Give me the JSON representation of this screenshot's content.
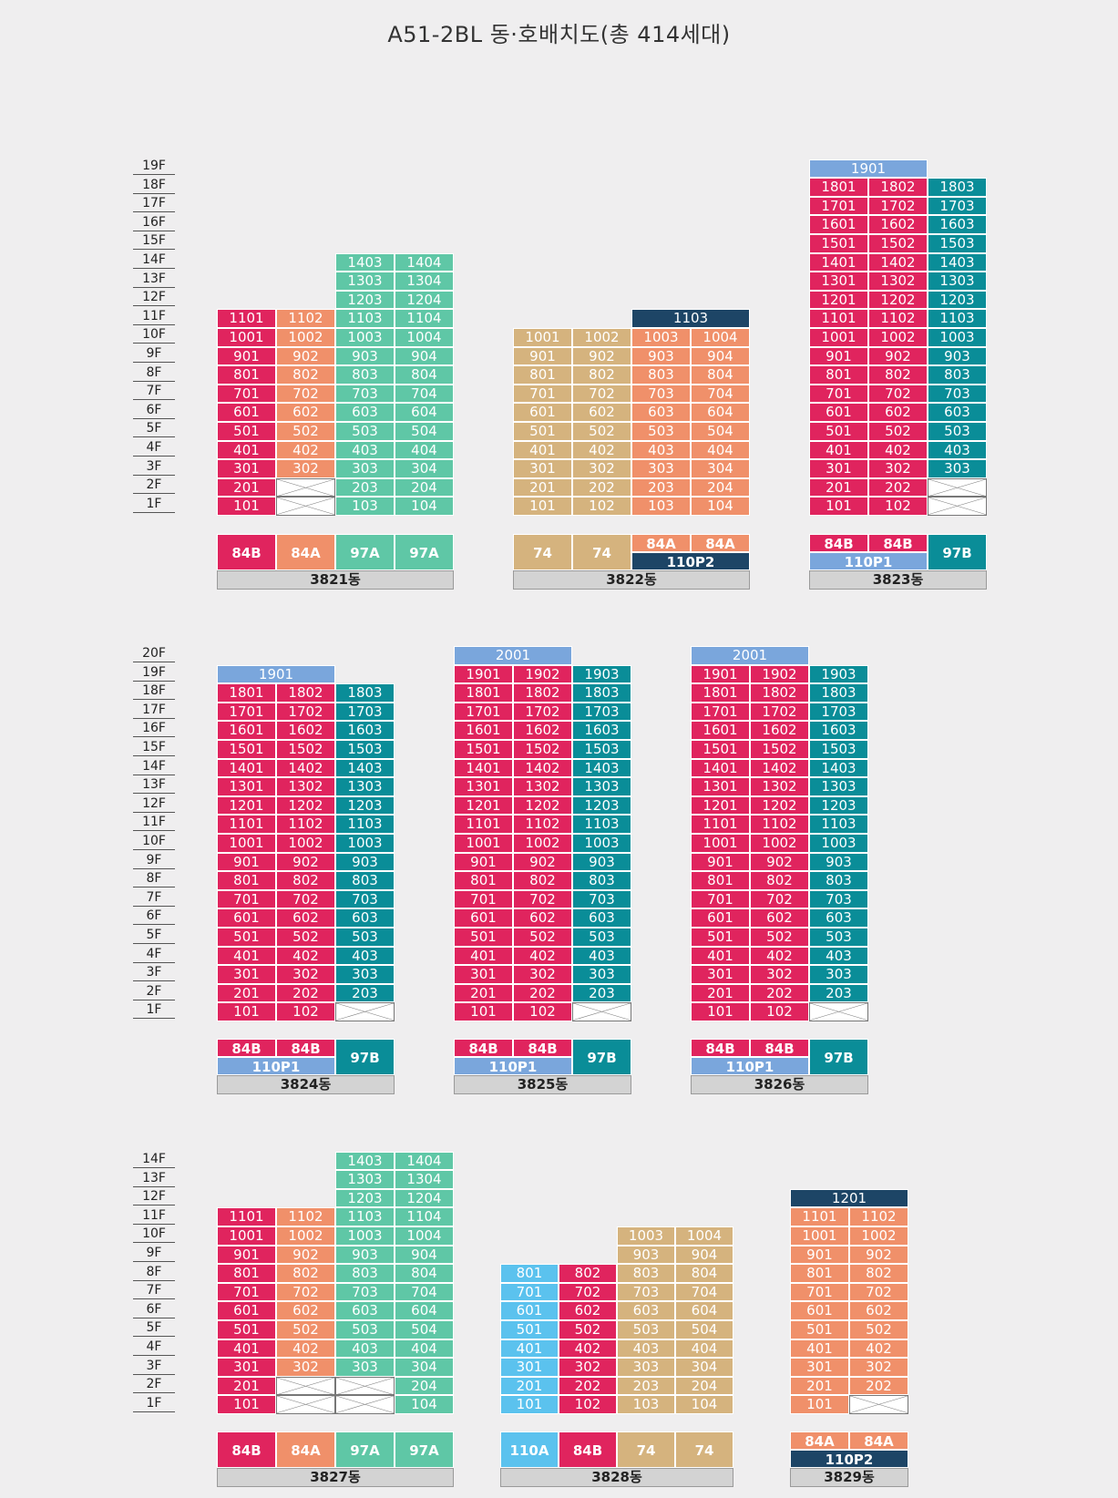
{
  "title": "A51-2BL 동·호배치도(총 414세대)",
  "colors": {
    "84B": "#e0245e",
    "84A": "#f0906a",
    "97A": "#5fc7a6",
    "97B": "#0a8d98",
    "74": "#d5b37e",
    "110A": "#5bc2ee",
    "110P": "#2f5b7d",
    "110P1": "#7aa6dc",
    "110P2": "#1d4566",
    "void": "#ffffff"
  },
  "floor_scales": [
    {
      "floors": [
        "19F",
        "18F",
        "17F",
        "16F",
        "15F",
        "14F",
        "13F",
        "12F",
        "11F",
        "10F",
        "9F",
        "8F",
        "7F",
        "6F",
        "5F",
        "4F",
        "3F",
        "2F",
        "1F"
      ]
    },
    {
      "floors": [
        "20F",
        "19F",
        "18F",
        "17F",
        "16F",
        "15F",
        "14F",
        "13F",
        "12F",
        "11F",
        "10F",
        "9F",
        "8F",
        "7F",
        "6F",
        "5F",
        "4F",
        "3F",
        "2F",
        "1F"
      ]
    },
    {
      "floors": [
        "14F",
        "13F",
        "12F",
        "11F",
        "10F",
        "9F",
        "8F",
        "7F",
        "6F",
        "5F",
        "4F",
        "3F",
        "2F",
        "1F"
      ]
    }
  ],
  "buildings": [
    {
      "name": "3821동",
      "columns": [
        {
          "type": "84B",
          "floors": [
            "101",
            "201",
            "301",
            "401",
            "501",
            "601",
            "701",
            "801",
            "901",
            "1001",
            "1101"
          ]
        },
        {
          "type": "84A",
          "floors": [
            null,
            null,
            "302",
            "402",
            "502",
            "602",
            "702",
            "802",
            "902",
            "1002",
            "1102"
          ]
        },
        {
          "type": "97A",
          "floors": [
            "103",
            "203",
            "303",
            "403",
            "503",
            "603",
            "703",
            "803",
            "903",
            "1003",
            "1103",
            "1203",
            "1303",
            "1403"
          ]
        },
        {
          "type": "97A",
          "floors": [
            "104",
            "204",
            "304",
            "404",
            "504",
            "604",
            "704",
            "804",
            "904",
            "1004",
            "1104",
            "1204",
            "1304",
            "1404"
          ]
        }
      ],
      "penthouse": null,
      "legend": [
        {
          "label": "84B",
          "type": "84B"
        },
        {
          "label": "84A",
          "type": "84A"
        },
        {
          "label": "97A",
          "type": "97A"
        },
        {
          "label": "97A",
          "type": "97A"
        }
      ]
    },
    {
      "name": "3822동",
      "columns": [
        {
          "type": "74",
          "floors": [
            "101",
            "201",
            "301",
            "401",
            "501",
            "601",
            "701",
            "801",
            "901",
            "1001"
          ]
        },
        {
          "type": "74",
          "floors": [
            "102",
            "202",
            "302",
            "402",
            "502",
            "602",
            "702",
            "802",
            "902",
            "1002"
          ]
        },
        {
          "type": "84A",
          "floors": [
            "103",
            "203",
            "303",
            "403",
            "503",
            "603",
            "703",
            "803",
            "903",
            "1003"
          ]
        },
        {
          "type": "84A",
          "floors": [
            "104",
            "204",
            "304",
            "404",
            "504",
            "604",
            "704",
            "804",
            "904",
            "1004"
          ]
        }
      ],
      "penthouse": {
        "label": "1103",
        "type": "110P2"
      },
      "legend": [
        {
          "label": "74",
          "type": "74"
        },
        {
          "label": "74",
          "type": "74"
        },
        {
          "label": "84A",
          "type": "84A"
        },
        {
          "label": "84A",
          "type": "84A"
        }
      ],
      "legend_sub": {
        "label": "110P2",
        "type": "110P2"
      }
    },
    {
      "name": "3823동",
      "columns": [
        {
          "type": "84B",
          "floors": [
            "101",
            "201",
            "301",
            "401",
            "501",
            "601",
            "701",
            "801",
            "901",
            "1001",
            "1101",
            "1201",
            "1301",
            "1401",
            "1501",
            "1601",
            "1701",
            "1801"
          ]
        },
        {
          "type": "84B",
          "floors": [
            "102",
            "202",
            "302",
            "402",
            "502",
            "602",
            "702",
            "802",
            "902",
            "1002",
            "1102",
            "1202",
            "1302",
            "1402",
            "1502",
            "1602",
            "1702",
            "1802"
          ]
        },
        {
          "type": "97B",
          "floors": [
            null,
            null,
            "303",
            "403",
            "503",
            "603",
            "703",
            "803",
            "903",
            "1003",
            "1103",
            "1203",
            "1303",
            "1403",
            "1503",
            "1603",
            "1703",
            "1803"
          ]
        }
      ],
      "penthouse": {
        "label": "1901",
        "type": "110P1"
      },
      "legend": [
        {
          "label": "84B",
          "type": "84B"
        },
        {
          "label": "84B",
          "type": "84B"
        },
        {
          "label": "97B",
          "type": "97B"
        }
      ],
      "legend_sub": {
        "label": "110P1",
        "type": "110P1"
      }
    },
    {
      "name": "3824동",
      "columns": [
        {
          "type": "84B",
          "floors": [
            "101",
            "201",
            "301",
            "401",
            "501",
            "601",
            "701",
            "801",
            "901",
            "1001",
            "1101",
            "1201",
            "1301",
            "1401",
            "1501",
            "1601",
            "1701",
            "1801"
          ]
        },
        {
          "type": "84B",
          "floors": [
            "102",
            "202",
            "302",
            "402",
            "502",
            "602",
            "702",
            "802",
            "902",
            "1002",
            "1102",
            "1202",
            "1302",
            "1402",
            "1502",
            "1602",
            "1702",
            "1802"
          ]
        },
        {
          "type": "97B",
          "floors": [
            null,
            "203",
            "303",
            "403",
            "503",
            "603",
            "703",
            "803",
            "903",
            "1003",
            "1103",
            "1203",
            "1303",
            "1403",
            "1503",
            "1603",
            "1703",
            "1803"
          ]
        }
      ],
      "penthouse": {
        "label": "1901",
        "type": "110P1"
      },
      "legend": [
        {
          "label": "84B",
          "type": "84B"
        },
        {
          "label": "84B",
          "type": "84B"
        },
        {
          "label": "97B",
          "type": "97B"
        }
      ],
      "legend_sub": {
        "label": "110P1",
        "type": "110P1"
      }
    },
    {
      "name": "3825동",
      "columns": [
        {
          "type": "84B",
          "floors": [
            "101",
            "201",
            "301",
            "401",
            "501",
            "601",
            "701",
            "801",
            "901",
            "1001",
            "1101",
            "1201",
            "1301",
            "1401",
            "1501",
            "1601",
            "1701",
            "1801",
            "1901"
          ]
        },
        {
          "type": "84B",
          "floors": [
            "102",
            "202",
            "302",
            "402",
            "502",
            "602",
            "702",
            "802",
            "902",
            "1002",
            "1102",
            "1202",
            "1302",
            "1402",
            "1502",
            "1602",
            "1702",
            "1802",
            "1902"
          ]
        },
        {
          "type": "97B",
          "floors": [
            null,
            "203",
            "303",
            "403",
            "503",
            "603",
            "703",
            "803",
            "903",
            "1003",
            "1103",
            "1203",
            "1303",
            "1403",
            "1503",
            "1603",
            "1703",
            "1803",
            "1903"
          ]
        }
      ],
      "penthouse": {
        "label": "2001",
        "type": "110P1"
      },
      "legend": [
        {
          "label": "84B",
          "type": "84B"
        },
        {
          "label": "84B",
          "type": "84B"
        },
        {
          "label": "97B",
          "type": "97B"
        }
      ],
      "legend_sub": {
        "label": "110P1",
        "type": "110P1"
      }
    },
    {
      "name": "3826동",
      "columns": [
        {
          "type": "84B",
          "floors": [
            "101",
            "201",
            "301",
            "401",
            "501",
            "601",
            "701",
            "801",
            "901",
            "1001",
            "1101",
            "1201",
            "1301",
            "1401",
            "1501",
            "1601",
            "1701",
            "1801",
            "1901"
          ]
        },
        {
          "type": "84B",
          "floors": [
            "102",
            "202",
            "302",
            "402",
            "502",
            "602",
            "702",
            "802",
            "902",
            "1002",
            "1102",
            "1202",
            "1302",
            "1402",
            "1502",
            "1602",
            "1702",
            "1802",
            "1902"
          ]
        },
        {
          "type": "97B",
          "floors": [
            null,
            "203",
            "303",
            "403",
            "503",
            "603",
            "703",
            "803",
            "903",
            "1003",
            "1103",
            "1203",
            "1303",
            "1403",
            "1503",
            "1603",
            "1703",
            "1803",
            "1903"
          ]
        }
      ],
      "penthouse": {
        "label": "2001",
        "type": "110P1"
      },
      "legend": [
        {
          "label": "84B",
          "type": "84B"
        },
        {
          "label": "84B",
          "type": "84B"
        },
        {
          "label": "97B",
          "type": "97B"
        }
      ],
      "legend_sub": {
        "label": "110P1",
        "type": "110P1"
      }
    },
    {
      "name": "3827동",
      "columns": [
        {
          "type": "84B",
          "floors": [
            "101",
            "201",
            "301",
            "401",
            "501",
            "601",
            "701",
            "801",
            "901",
            "1001",
            "1101"
          ]
        },
        {
          "type": "84A",
          "floors": [
            null,
            null,
            "302",
            "402",
            "502",
            "602",
            "702",
            "802",
            "902",
            "1002",
            "1102"
          ]
        },
        {
          "type": "97A",
          "floors": [
            null,
            null,
            "303",
            "403",
            "503",
            "603",
            "703",
            "803",
            "903",
            "1003",
            "1103",
            "1203",
            "1303",
            "1403"
          ]
        },
        {
          "type": "97A",
          "floors": [
            "104",
            "204",
            "304",
            "404",
            "504",
            "604",
            "704",
            "804",
            "904",
            "1004",
            "1104",
            "1204",
            "1304",
            "1404"
          ]
        }
      ],
      "penthouse": null,
      "legend": [
        {
          "label": "84B",
          "type": "84B"
        },
        {
          "label": "84A",
          "type": "84A"
        },
        {
          "label": "97A",
          "type": "97A"
        },
        {
          "label": "97A",
          "type": "97A"
        }
      ]
    },
    {
      "name": "3828동",
      "columns": [
        {
          "type": "110A",
          "floors": [
            "101",
            "201",
            "301",
            "401",
            "501",
            "601",
            "701",
            "801"
          ]
        },
        {
          "type": "84B",
          "floors": [
            "102",
            "202",
            "302",
            "402",
            "502",
            "602",
            "702",
            "802"
          ]
        },
        {
          "type": "74",
          "floors": [
            "103",
            "203",
            "303",
            "403",
            "503",
            "603",
            "703",
            "803",
            "903",
            "1003"
          ]
        },
        {
          "type": "74",
          "floors": [
            "104",
            "204",
            "304",
            "404",
            "504",
            "604",
            "704",
            "804",
            "904",
            "1004"
          ]
        }
      ],
      "penthouse": null,
      "legend": [
        {
          "label": "110A",
          "type": "110A"
        },
        {
          "label": "84B",
          "type": "84B"
        },
        {
          "label": "74",
          "type": "74"
        },
        {
          "label": "74",
          "type": "74"
        }
      ]
    },
    {
      "name": "3829동",
      "columns": [
        {
          "type": "84A",
          "floors": [
            "101",
            "201",
            "301",
            "401",
            "501",
            "601",
            "701",
            "801",
            "901",
            "1001",
            "1101"
          ]
        },
        {
          "type": "84A",
          "floors": [
            null,
            "202",
            "302",
            "402",
            "502",
            "602",
            "702",
            "802",
            "902",
            "1002",
            "1102"
          ]
        }
      ],
      "penthouse": {
        "label": "1201",
        "type": "110P2"
      },
      "legend": [
        {
          "label": "84A",
          "type": "84A"
        },
        {
          "label": "84A",
          "type": "84A"
        }
      ],
      "legend_sub": {
        "label": "110P2",
        "type": "110P2"
      }
    }
  ]
}
